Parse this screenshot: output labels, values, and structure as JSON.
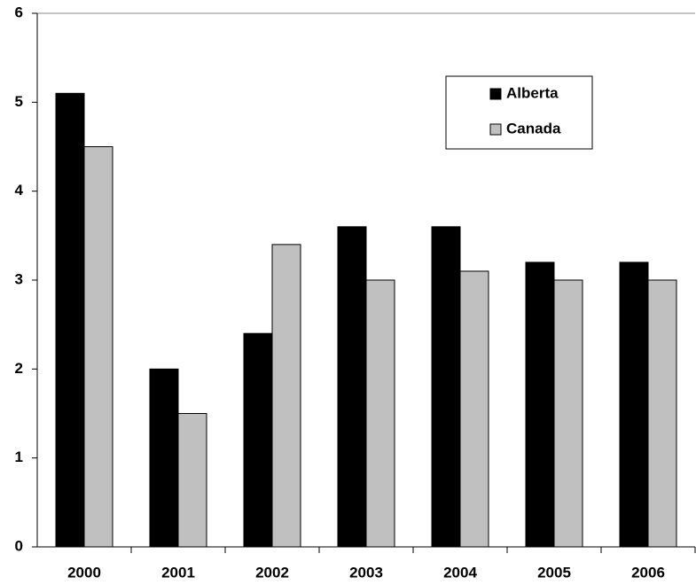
{
  "chart_data": {
    "type": "bar",
    "categories": [
      "2000",
      "2001",
      "2002",
      "2003",
      "2004",
      "2005",
      "2006"
    ],
    "series": [
      {
        "name": "Alberta",
        "color": "#000000",
        "values": [
          5.1,
          2.0,
          2.4,
          3.6,
          3.6,
          3.2,
          3.2
        ]
      },
      {
        "name": "Canada",
        "color": "#c0c0c0",
        "values": [
          4.5,
          1.5,
          3.4,
          3.0,
          3.1,
          3.0,
          3.0
        ]
      }
    ],
    "ylim": [
      0,
      6
    ],
    "yticks": [
      0,
      1,
      2,
      3,
      4,
      5,
      6
    ],
    "grid": false,
    "legend": "top-right"
  }
}
